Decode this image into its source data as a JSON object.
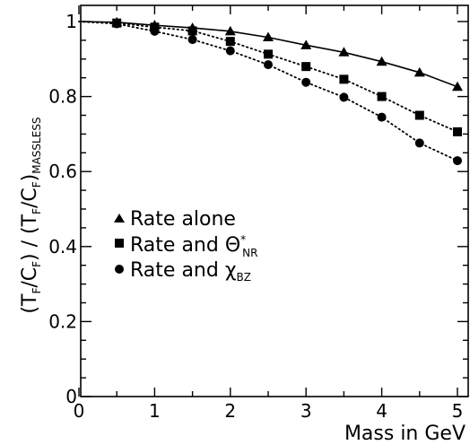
{
  "chart_data": {
    "type": "line",
    "xlabel": "Mass in GeV",
    "ylabel": {
      "parts": [
        "(T",
        "F",
        "/C",
        "F",
        ") / (T",
        "F",
        "/C",
        "F",
        ")",
        "MASSLESS"
      ]
    },
    "xlim": [
      0,
      5.2
    ],
    "ylim": [
      0,
      1.04
    ],
    "x_ticks": [
      0,
      1,
      2,
      3,
      4,
      5
    ],
    "x_tick_labels": [
      "0",
      "1",
      "2",
      "3",
      "4",
      "5"
    ],
    "y_ticks": [
      0,
      0.2,
      0.4,
      0.6,
      0.8,
      1
    ],
    "y_tick_labels": [
      "0",
      "0.2",
      "0.4",
      "0.6",
      "0.8",
      "1"
    ],
    "grid": false,
    "legend_position": "center-left",
    "series": [
      {
        "name": "Rate alone",
        "legend_parts": [
          "Rate alone"
        ],
        "marker": "triangle",
        "line_style": "solid",
        "x": [
          0,
          0.5,
          1.0,
          1.5,
          2.0,
          2.5,
          3.0,
          3.5,
          4.0,
          4.5,
          5.0
        ],
        "y": [
          1.0,
          0.998,
          0.99,
          0.983,
          0.974,
          0.958,
          0.937,
          0.918,
          0.893,
          0.864,
          0.826
        ]
      },
      {
        "name": "Rate and Θ*NR",
        "legend_parts": [
          "Rate and Θ",
          "*",
          "NR"
        ],
        "marker": "square",
        "line_style": "dotted",
        "x": [
          0,
          0.5,
          1.0,
          1.5,
          2.0,
          2.5,
          3.0,
          3.5,
          4.0,
          4.5,
          5.0
        ],
        "y": [
          1.0,
          0.996,
          0.985,
          0.975,
          0.947,
          0.913,
          0.88,
          0.846,
          0.8,
          0.75,
          0.706
        ]
      },
      {
        "name": "Rate and χBZ",
        "legend_parts": [
          "Rate and χ",
          "BZ"
        ],
        "marker": "circle",
        "line_style": "dotted",
        "x": [
          0,
          0.5,
          1.0,
          1.5,
          2.0,
          2.5,
          3.0,
          3.5,
          4.0,
          4.5,
          5.0
        ],
        "y": [
          1.0,
          0.994,
          0.974,
          0.952,
          0.922,
          0.885,
          0.838,
          0.798,
          0.745,
          0.676,
          0.629
        ]
      }
    ]
  }
}
